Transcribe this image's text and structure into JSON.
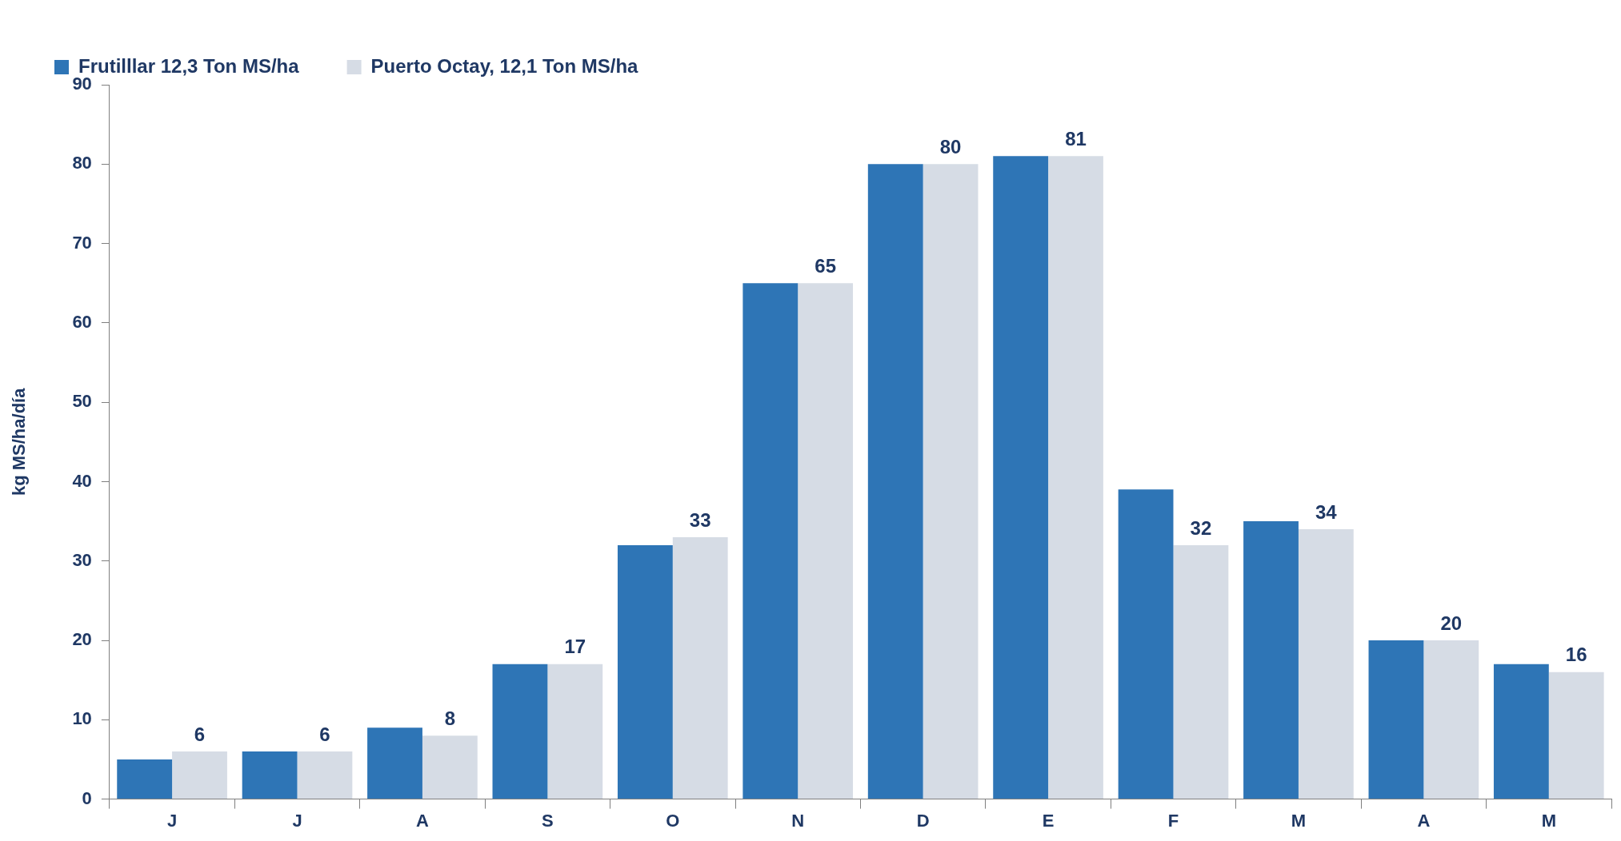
{
  "chart_data": {
    "type": "bar",
    "ylabel": "kg MS/ha/día",
    "categories": [
      "J",
      "J",
      "A",
      "S",
      "O",
      "N",
      "D",
      "E",
      "F",
      "M",
      "A",
      "M"
    ],
    "series": [
      {
        "name": "Frutilllar 12,3 Ton MS/ha",
        "color": "#2e75b6",
        "values": [
          5,
          6,
          9,
          17,
          32,
          65,
          80,
          81,
          39,
          35,
          20,
          17
        ]
      },
      {
        "name": "Puerto Octay, 12,1 Ton MS/ha",
        "color": "#d6dce5",
        "values": [
          6,
          6,
          8,
          17,
          33,
          65,
          80,
          81,
          32,
          34,
          20,
          16
        ],
        "value_labels": [
          "6",
          "6",
          "8",
          "17",
          "33",
          "65",
          "80",
          "81",
          "32",
          "34",
          "20",
          "16"
        ]
      }
    ],
    "ylim": [
      0,
      90
    ],
    "yticks": [
      0,
      10,
      20,
      30,
      40,
      50,
      60,
      70,
      80,
      90
    ],
    "grid": false,
    "legend": "top left"
  }
}
